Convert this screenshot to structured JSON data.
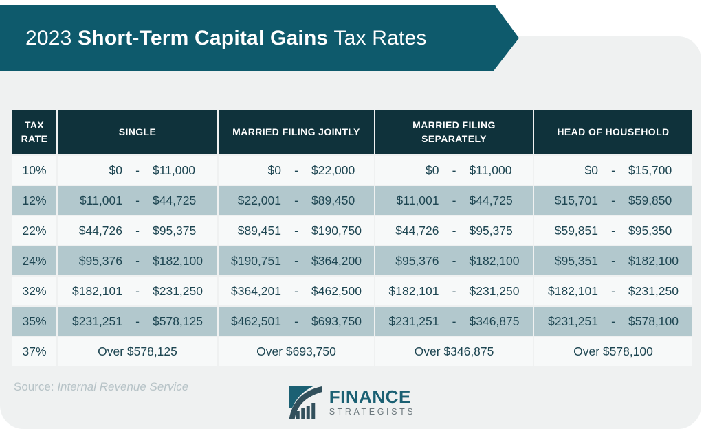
{
  "header": {
    "title_prefix": "2023 ",
    "title_bold": "Short-Term Capital Gains",
    "title_suffix": " Tax Rates"
  },
  "chart_data": {
    "type": "table",
    "title": "2023 Short-Term Capital Gains Tax Rates",
    "columns": [
      "TAX RATE",
      "SINGLE",
      "MARRIED FILING JOINTLY",
      "MARRIED FILING SEPARATELY",
      "HEAD OF HOUSEHOLD"
    ],
    "dash": "-",
    "rows": [
      {
        "rate": "10%",
        "ranges": [
          [
            "$0",
            "$11,000"
          ],
          [
            "$0",
            "$22,000"
          ],
          [
            "$0",
            "$11,000"
          ],
          [
            "$0",
            "$15,700"
          ]
        ]
      },
      {
        "rate": "12%",
        "ranges": [
          [
            "$11,001",
            "$44,725"
          ],
          [
            "$22,001",
            "$89,450"
          ],
          [
            "$11,001",
            "$44,725"
          ],
          [
            "$15,701",
            "$59,850"
          ]
        ]
      },
      {
        "rate": "22%",
        "ranges": [
          [
            "$44,726",
            "$95,375"
          ],
          [
            "$89,451",
            "$190,750"
          ],
          [
            "$44,726",
            "$95,375"
          ],
          [
            "$59,851",
            "$95,350"
          ]
        ]
      },
      {
        "rate": "24%",
        "ranges": [
          [
            "$95,376",
            "$182,100"
          ],
          [
            "$190,751",
            "$364,200"
          ],
          [
            "$95,376",
            "$182,100"
          ],
          [
            "$95,351",
            "$182,100"
          ]
        ]
      },
      {
        "rate": "32%",
        "ranges": [
          [
            "$182,101",
            "$231,250"
          ],
          [
            "$364,201",
            "$462,500"
          ],
          [
            "$182,101",
            "$231,250"
          ],
          [
            "$182,101",
            "$231,250"
          ]
        ]
      },
      {
        "rate": "35%",
        "ranges": [
          [
            "$231,251",
            "$578,125"
          ],
          [
            "$462,501",
            "$693,750"
          ],
          [
            "$231,251",
            "$346,875"
          ],
          [
            "$231,251",
            "$578,100"
          ]
        ]
      },
      {
        "rate": "37%",
        "ranges": [
          [
            "Over $578,125"
          ],
          [
            "Over $693,750"
          ],
          [
            "Over $346,875"
          ],
          [
            "Over $578,100"
          ]
        ]
      }
    ]
  },
  "footer": {
    "source_label": "Source:",
    "source_name": "Internal Revenue Service",
    "logo_line1": "FINANCE",
    "logo_line2": "STRATEGISTS"
  },
  "colors": {
    "banner": "#0E5A6C",
    "table_header": "#0F323B",
    "row_light": "#F7F9F9",
    "row_dark": "#B2C8CD",
    "card_background": "#EFF1F1",
    "data_text": "#1E4652",
    "source_text": "#B7C3C7",
    "logo_teal": "#1B6073",
    "logo_dark": "#32505C"
  }
}
